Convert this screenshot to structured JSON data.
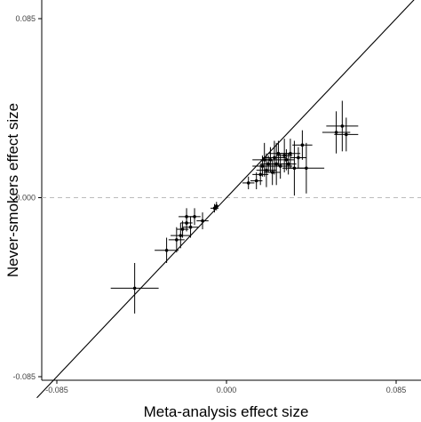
{
  "chart_data": {
    "type": "scatter",
    "title": "",
    "xlabel": "Meta-analysis effect size",
    "ylabel": "Never-smokers effect size",
    "xlim": [
      -0.085,
      0.085
    ],
    "ylim": [
      -0.085,
      0.085
    ],
    "x_ticks": [
      "-0.085",
      "0.000",
      "0.085"
    ],
    "y_ticks": [
      "-0.085",
      "0.000",
      "0.085"
    ],
    "grid": false,
    "identity_line": true,
    "zero_reference_line": {
      "axis": "y",
      "value": 0.0,
      "style": "dashed",
      "color": "#bbbbbb"
    },
    "points": [
      {
        "x": -0.046,
        "y": -0.043,
        "xerr": 0.012,
        "yerr": 0.012
      },
      {
        "x": -0.03,
        "y": -0.025,
        "xerr": 0.006,
        "yerr": 0.006
      },
      {
        "x": -0.025,
        "y": -0.02,
        "xerr": 0.004,
        "yerr": 0.006
      },
      {
        "x": -0.023,
        "y": -0.018,
        "xerr": 0.005,
        "yerr": 0.006
      },
      {
        "x": -0.022,
        "y": -0.015,
        "xerr": 0.003,
        "yerr": 0.004
      },
      {
        "x": -0.02,
        "y": -0.012,
        "xerr": 0.003,
        "yerr": 0.004
      },
      {
        "x": -0.02,
        "y": -0.009,
        "xerr": 0.004,
        "yerr": 0.004
      },
      {
        "x": -0.018,
        "y": -0.014,
        "xerr": 0.004,
        "yerr": 0.005
      },
      {
        "x": -0.016,
        "y": -0.009,
        "xerr": 0.003,
        "yerr": 0.004
      },
      {
        "x": -0.012,
        "y": -0.011,
        "xerr": 0.003,
        "yerr": 0.004
      },
      {
        "x": -0.006,
        "y": -0.005,
        "xerr": 0.002,
        "yerr": 0.002
      },
      {
        "x": -0.005,
        "y": -0.004,
        "xerr": 0.001,
        "yerr": 0.002
      },
      {
        "x": 0.011,
        "y": 0.007,
        "xerr": 0.003,
        "yerr": 0.003
      },
      {
        "x": 0.015,
        "y": 0.008,
        "xerr": 0.003,
        "yerr": 0.004
      },
      {
        "x": 0.017,
        "y": 0.011,
        "xerr": 0.004,
        "yerr": 0.005
      },
      {
        "x": 0.018,
        "y": 0.015,
        "xerr": 0.005,
        "yerr": 0.005
      },
      {
        "x": 0.019,
        "y": 0.018,
        "xerr": 0.006,
        "yerr": 0.008
      },
      {
        "x": 0.02,
        "y": 0.013,
        "xerr": 0.005,
        "yerr": 0.008
      },
      {
        "x": 0.021,
        "y": 0.016,
        "xerr": 0.004,
        "yerr": 0.004
      },
      {
        "x": 0.022,
        "y": 0.018,
        "xerr": 0.005,
        "yerr": 0.006
      },
      {
        "x": 0.023,
        "y": 0.012,
        "xerr": 0.004,
        "yerr": 0.006
      },
      {
        "x": 0.024,
        "y": 0.019,
        "xerr": 0.006,
        "yerr": 0.008
      },
      {
        "x": 0.025,
        "y": 0.016,
        "xerr": 0.004,
        "yerr": 0.01
      },
      {
        "x": 0.026,
        "y": 0.021,
        "xerr": 0.005,
        "yerr": 0.006
      },
      {
        "x": 0.027,
        "y": 0.015,
        "xerr": 0.006,
        "yerr": 0.006
      },
      {
        "x": 0.029,
        "y": 0.02,
        "xerr": 0.004,
        "yerr": 0.008
      },
      {
        "x": 0.03,
        "y": 0.018,
        "xerr": 0.004,
        "yerr": 0.005
      },
      {
        "x": 0.031,
        "y": 0.016,
        "xerr": 0.004,
        "yerr": 0.005
      },
      {
        "x": 0.032,
        "y": 0.021,
        "xerr": 0.005,
        "yerr": 0.007
      },
      {
        "x": 0.034,
        "y": 0.014,
        "xerr": 0.006,
        "yerr": 0.013
      },
      {
        "x": 0.036,
        "y": 0.019,
        "xerr": 0.004,
        "yerr": 0.005
      },
      {
        "x": 0.038,
        "y": 0.025,
        "xerr": 0.005,
        "yerr": 0.007
      },
      {
        "x": 0.04,
        "y": 0.014,
        "xerr": 0.009,
        "yerr": 0.012
      },
      {
        "x": 0.055,
        "y": 0.031,
        "xerr": 0.007,
        "yerr": 0.01
      },
      {
        "x": 0.058,
        "y": 0.034,
        "xerr": 0.008,
        "yerr": 0.012
      },
      {
        "x": 0.06,
        "y": 0.03,
        "xerr": 0.006,
        "yerr": 0.008
      }
    ]
  }
}
